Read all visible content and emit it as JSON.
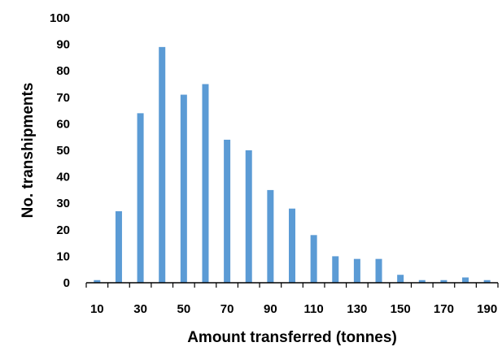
{
  "chart_data": {
    "type": "bar",
    "x": [
      10,
      20,
      30,
      40,
      50,
      60,
      70,
      80,
      90,
      100,
      110,
      120,
      130,
      140,
      150,
      160,
      170,
      180,
      190
    ],
    "values": [
      1,
      27,
      64,
      89,
      71,
      75,
      54,
      50,
      35,
      28,
      18,
      10,
      9,
      9,
      3,
      1,
      1,
      2,
      1
    ],
    "x_tick_labels": [
      "10",
      "30",
      "50",
      "70",
      "90",
      "110",
      "130",
      "150",
      "170",
      "190"
    ],
    "y_tick_labels": [
      "0",
      "10",
      "20",
      "30",
      "40",
      "50",
      "60",
      "70",
      "80",
      "90",
      "100"
    ],
    "xlabel": "Amount transferred (tonnes)",
    "ylabel": "No. transhipments",
    "ylim": [
      0,
      100
    ],
    "grid": false,
    "bar_color": "#5B9BD5",
    "axis_color": "#000000"
  }
}
